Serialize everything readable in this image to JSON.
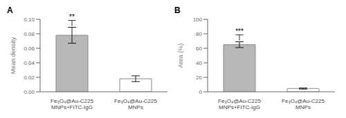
{
  "chart_data": [
    {
      "type": "bar",
      "title": "A",
      "ylabel": "Mean density",
      "categories": [
        "Fe₃O₄@Au-C225\nMNPs+FITC-IgG",
        "Fe₃O₄@Au-C225\nMNPs"
      ],
      "values": [
        0.078,
        0.018
      ],
      "errors": [
        0.011,
        0.004
      ],
      "colors": [
        "#b8b8b8",
        "white"
      ],
      "annotation": "**",
      "ylim": [
        0,
        0.1
      ],
      "yticks": [
        {
          "value": 0,
          "label": "0.00"
        },
        0.02,
        0.04,
        0.06,
        0.08,
        {
          "value": 0.1,
          "label": "0.10"
        }
      ],
      "grid": false
    },
    {
      "type": "bar",
      "title": "B",
      "ylabel": "Area (%)",
      "categories": [
        "Fe₃O₄@Au-C225\nMNPs+FITC-IgG",
        "Fe₃O₄@Au-C225\nMNPs"
      ],
      "values": [
        65.0,
        4.5
      ],
      "errors": [
        4.0,
        0.8
      ],
      "colors": [
        "#b8b8b8",
        "white"
      ],
      "annotation": "***",
      "ylim": [
        0,
        100
      ],
      "yticks": [
        0,
        20,
        40,
        60,
        80,
        100
      ],
      "grid": false
    }
  ]
}
